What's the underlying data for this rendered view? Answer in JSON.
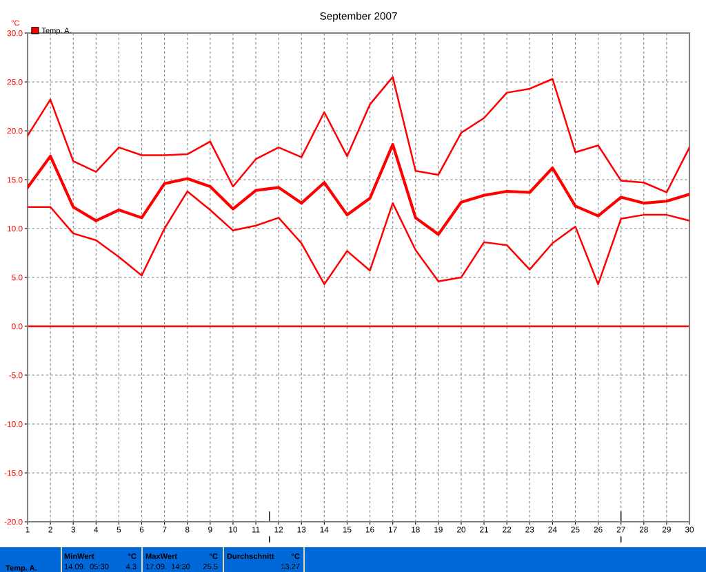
{
  "chart_data": {
    "type": "line",
    "title": "September 2007",
    "ylabel": "°C",
    "x": [
      1,
      2,
      3,
      4,
      5,
      6,
      7,
      8,
      9,
      10,
      11,
      12,
      13,
      14,
      15,
      16,
      17,
      18,
      19,
      20,
      21,
      22,
      23,
      24,
      25,
      26,
      27,
      28,
      29,
      30
    ],
    "series": [
      {
        "color": "#ff0000",
        "values": [
          19.5,
          23.2,
          16.9,
          15.8,
          18.3,
          17.5,
          17.5,
          17.6,
          18.9,
          14.3,
          17.1,
          18.3,
          17.3,
          21.9,
          17.4,
          22.7,
          25.5,
          15.9,
          15.5,
          19.8,
          21.3,
          23.9,
          24.3,
          25.3,
          17.8,
          18.5,
          14.9,
          14.7,
          13.7,
          18.3
        ]
      },
      {
        "name": "Temp. A.",
        "color": "#ff0000",
        "values": [
          14.2,
          17.4,
          12.2,
          10.8,
          11.9,
          11.1,
          14.6,
          15.1,
          14.3,
          12.0,
          13.9,
          14.2,
          12.6,
          14.7,
          11.4,
          13.1,
          18.6,
          11.1,
          9.4,
          12.7,
          13.4,
          13.8,
          13.7,
          16.2,
          12.3,
          11.3,
          13.2,
          12.6,
          12.8,
          13.5
        ]
      },
      {
        "color": "#ff0000",
        "values": [
          12.2,
          12.2,
          9.5,
          8.8,
          7.1,
          5.2,
          10.0,
          13.8,
          11.9,
          9.8,
          10.3,
          11.1,
          8.5,
          4.3,
          7.7,
          5.7,
          12.6,
          7.8,
          4.6,
          5.0,
          8.6,
          8.3,
          5.8,
          8.5,
          10.2,
          4.3,
          11.0,
          11.4,
          11.4,
          10.8
        ]
      }
    ],
    "xlim": [
      1,
      30
    ],
    "xticks": [
      1,
      2,
      3,
      4,
      5,
      6,
      7,
      8,
      9,
      10,
      11,
      12,
      13,
      14,
      15,
      16,
      17,
      18,
      19,
      20,
      21,
      22,
      23,
      24,
      25,
      26,
      27,
      28,
      29,
      30
    ],
    "ylim": [
      -20,
      30
    ],
    "yticks": [
      {
        "value": -20,
        "label": "-20.0"
      },
      {
        "value": -15,
        "label": "-15.0"
      },
      {
        "value": -10,
        "label": "-10.0"
      },
      {
        "value": -5,
        "label": "-5.0"
      },
      {
        "value": 0,
        "label": "0.0"
      },
      {
        "value": 5,
        "label": "5.0"
      },
      {
        "value": 10,
        "label": "10.0"
      },
      {
        "value": 15,
        "label": "15.0"
      },
      {
        "value": 20,
        "label": "20.0"
      },
      {
        "value": 25,
        "label": "25.0"
      },
      {
        "value": 30,
        "label": "30.0"
      }
    ],
    "ref_lines": [
      {
        "axis": "y",
        "value": 0,
        "color": "#ff0000"
      }
    ],
    "grid": true,
    "legend": "top left",
    "marker": "none",
    "line_style": "solid",
    "annotations": [
      "Temp. A.",
      "MinWert",
      "°C",
      "14.09.  05:30",
      "4.3",
      "MaxWert",
      "°C",
      "17.09.  14:30",
      "25.5",
      "Durchschnitt",
      "°C",
      "13.27"
    ]
  }
}
